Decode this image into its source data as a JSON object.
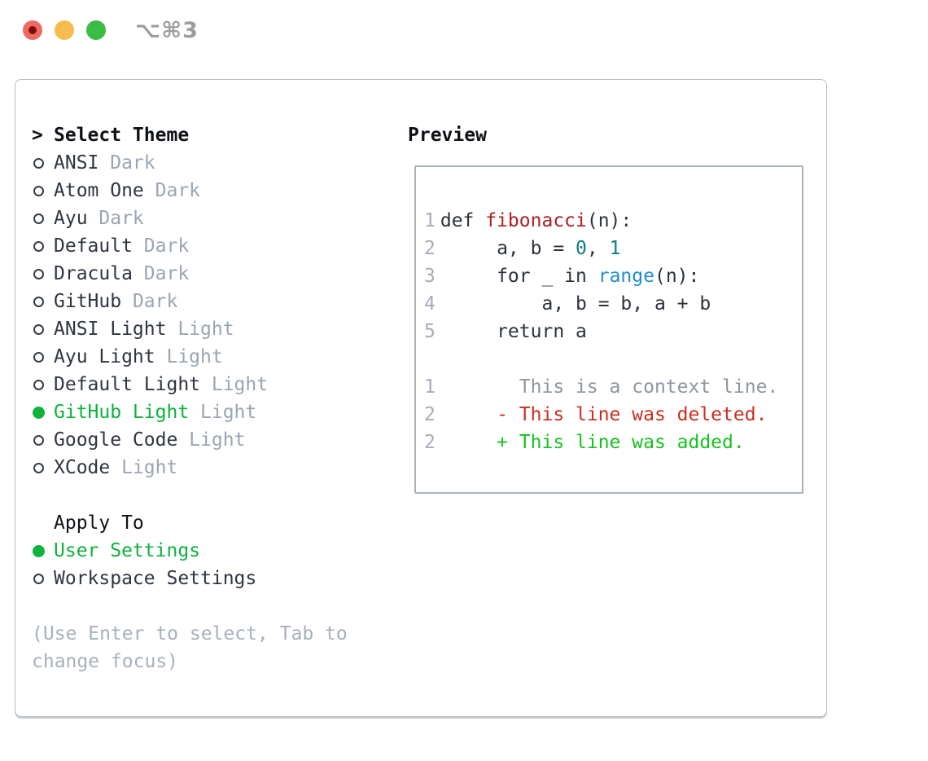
{
  "titlebar": {
    "shortcut": "⌥⌘3"
  },
  "left": {
    "title_prefix": ">",
    "title": "Select Theme",
    "themes": [
      {
        "name": "ANSI",
        "variant": "Dark",
        "selected": false
      },
      {
        "name": "Atom One",
        "variant": "Dark",
        "selected": false
      },
      {
        "name": "Ayu",
        "variant": "Dark",
        "selected": false
      },
      {
        "name": "Default",
        "variant": "Dark",
        "selected": false
      },
      {
        "name": "Dracula",
        "variant": "Dark",
        "selected": false
      },
      {
        "name": "GitHub",
        "variant": "Dark",
        "selected": false
      },
      {
        "name": "ANSI Light",
        "variant": "Light",
        "selected": false
      },
      {
        "name": "Ayu Light",
        "variant": "Light",
        "selected": false
      },
      {
        "name": "Default Light",
        "variant": "Light",
        "selected": false
      },
      {
        "name": "GitHub Light",
        "variant": "Light",
        "selected": true
      },
      {
        "name": "Google Code",
        "variant": "Light",
        "selected": false
      },
      {
        "name": "XCode",
        "variant": "Light",
        "selected": false
      }
    ],
    "apply_to": {
      "title": "Apply To",
      "options": [
        {
          "label": "User Settings",
          "selected": true
        },
        {
          "label": "Workspace Settings",
          "selected": false
        }
      ]
    },
    "hint_lines": [
      "(Use Enter to select, Tab to",
      "change focus)"
    ]
  },
  "preview": {
    "title": "Preview",
    "lines": [
      {
        "kind": "code-line",
        "num": "1",
        "tokens": [
          {
            "t": "def ",
            "s": "plain"
          },
          {
            "t": "fibonacci",
            "s": "func"
          },
          {
            "t": "(n):",
            "s": "plain"
          }
        ]
      },
      {
        "kind": "code-line",
        "num": "2",
        "tokens": [
          {
            "t": "     a, b = ",
            "s": "plain"
          },
          {
            "t": "0",
            "s": "num"
          },
          {
            "t": ", ",
            "s": "plain"
          },
          {
            "t": "1",
            "s": "num"
          }
        ]
      },
      {
        "kind": "code-line",
        "num": "3",
        "tokens": [
          {
            "t": "     for _ in ",
            "s": "plain"
          },
          {
            "t": "range",
            "s": "call"
          },
          {
            "t": "(n):",
            "s": "plain"
          }
        ]
      },
      {
        "kind": "code-line",
        "num": "4",
        "tokens": [
          {
            "t": "         a, b = b, a + b",
            "s": "plain"
          }
        ]
      },
      {
        "kind": "code-line",
        "num": "5",
        "tokens": [
          {
            "t": "     return a",
            "s": "plain"
          }
        ]
      },
      {
        "kind": "blank-line",
        "num": "",
        "tokens": []
      },
      {
        "kind": "context-line",
        "num": "1",
        "tokens": [
          {
            "t": "       This is a context line.",
            "s": "ctx"
          }
        ]
      },
      {
        "kind": "deleted-line",
        "num": "2",
        "tokens": [
          {
            "t": "     - This line was deleted.",
            "s": "del"
          }
        ]
      },
      {
        "kind": "added-line",
        "num": "2",
        "tokens": [
          {
            "t": "     + This line was added.",
            "s": "add"
          }
        ]
      }
    ]
  },
  "colors": {
    "selection_green": "#0db33c",
    "muted_variant": "#9aa5b3",
    "hint_gray": "#a7b0bc",
    "function_red": "#ad1f24",
    "number_teal": "#0d7e81",
    "call_blue": "#1f8ecd",
    "context_gray": "#8e969f",
    "diff_deleted_red": "#c92f1f",
    "diff_added_green": "#15c31f",
    "traffic_red": "#ee6a5f",
    "traffic_yellow": "#f6bd4e",
    "traffic_green": "#3cbc42",
    "panel_border": "#b4bcc4"
  }
}
